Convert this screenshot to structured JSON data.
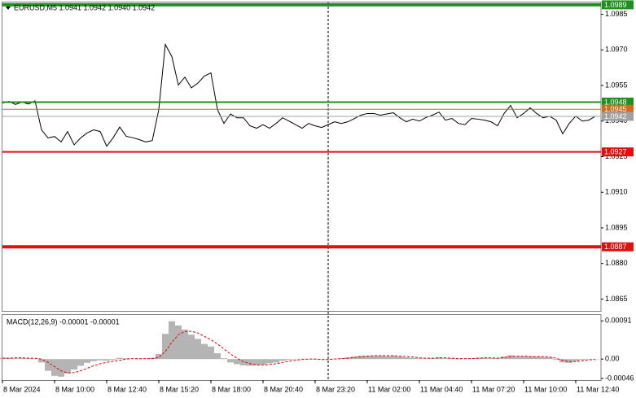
{
  "chart_data": [
    {
      "type": "line",
      "title": "EURUSD,M5  1.0941 1.0942 1.0940 1.0942",
      "color": "#000000",
      "x": [
        0,
        4,
        8,
        12,
        16,
        20,
        24,
        28,
        32,
        36,
        40,
        44,
        48,
        52,
        56,
        60,
        64,
        68,
        72,
        76,
        80,
        84,
        88,
        92,
        96,
        100,
        104,
        108,
        112,
        116,
        120,
        124,
        128,
        132,
        136,
        140,
        144,
        148,
        152,
        156,
        160,
        164,
        168,
        172,
        176,
        180,
        184,
        188,
        192,
        196,
        200,
        204,
        208,
        212,
        216,
        220,
        224,
        228,
        232,
        236,
        240,
        244,
        248,
        252,
        256,
        260,
        264,
        268,
        272,
        276,
        280,
        284,
        288,
        292,
        296,
        300,
        304,
        308,
        312,
        316,
        320,
        324,
        328,
        332,
        336,
        340,
        344,
        348,
        352,
        356,
        360,
        364
      ],
      "values": [
        1.09476,
        1.09483,
        1.0947,
        1.0948,
        1.09472,
        1.09485,
        1.09363,
        1.09329,
        1.09335,
        1.09312,
        1.09356,
        1.093,
        1.09329,
        1.0935,
        1.09363,
        1.09356,
        1.09294,
        1.0933,
        1.09375,
        1.09336,
        1.0933,
        1.09322,
        1.09312,
        1.09318,
        1.09449,
        1.09723,
        1.09672,
        1.09552,
        1.09585,
        1.0954,
        1.0956,
        1.0959,
        1.09603,
        1.09449,
        1.0939,
        1.0943,
        1.09414,
        1.09414,
        1.0938,
        1.0937,
        1.09385,
        1.0937,
        1.0939,
        1.09414,
        1.094,
        1.09385,
        1.0937,
        1.0939,
        1.0938,
        1.09373,
        1.09385,
        1.09397,
        1.0939,
        1.09397,
        1.0941,
        1.09425,
        1.09432,
        1.09432,
        1.09425,
        1.0943,
        1.09435,
        1.09414,
        1.09397,
        1.09408,
        1.094,
        1.09415,
        1.09425,
        1.09438,
        1.09404,
        1.09411,
        1.0939,
        1.09385,
        1.09411,
        1.09408,
        1.09404,
        1.09397,
        1.0938,
        1.09432,
        1.09466,
        1.09414,
        1.09432,
        1.09456,
        1.09432,
        1.09414,
        1.0942,
        1.09404,
        1.09346,
        1.0939,
        1.09421,
        1.094,
        1.09404,
        1.0942
      ],
      "xlim": [
        0,
        367.5
      ],
      "ylim": [
        1.086,
        1.099
      ],
      "yticks": [
        1.0985,
        {
          "value": 1.097,
          "label": "1.0970"
        },
        1.0955,
        {
          "value": 1.094,
          "label": "1.0940"
        },
        1.0925,
        {
          "value": 1.091,
          "label": "1.0910"
        },
        1.0895,
        {
          "value": 1.088,
          "label": "1.0880"
        },
        1.0865
      ],
      "levels": [
        {
          "value": 1.0989,
          "color": "#1f8f1f",
          "width": 4
        },
        {
          "value": 1.0948,
          "color": "#1f8f1f",
          "width": 2
        },
        {
          "value": 1.0945,
          "color": "#d2691e",
          "width": 1
        },
        {
          "value": 1.0942,
          "color": "#a0a0a0",
          "width": 1
        },
        {
          "value": 1.0927,
          "color": "#e01010",
          "width": 2
        },
        {
          "value": 1.0887,
          "color": "#e01010",
          "width": 4
        }
      ],
      "vlines": [
        200
      ]
    },
    {
      "type": "macd",
      "title": "MACD(12,26,9) -0.00001 -0.00001",
      "x": [
        0,
        4,
        8,
        12,
        16,
        20,
        24,
        28,
        32,
        36,
        40,
        44,
        48,
        52,
        56,
        60,
        64,
        68,
        72,
        76,
        80,
        84,
        88,
        92,
        96,
        100,
        104,
        108,
        112,
        116,
        120,
        124,
        128,
        132,
        136,
        140,
        144,
        148,
        152,
        156,
        160,
        164,
        168,
        172,
        176,
        180,
        184,
        188,
        192,
        196,
        200,
        204,
        208,
        212,
        216,
        220,
        224,
        228,
        232,
        236,
        240,
        244,
        248,
        252,
        256,
        260,
        264,
        268,
        272,
        276,
        280,
        284,
        288,
        292,
        296,
        300,
        304,
        308,
        312,
        316,
        320,
        324,
        328,
        332,
        336,
        340,
        344,
        348,
        352,
        356,
        360,
        364
      ],
      "histogram": {
        "color": "#b4b4b4",
        "values": [
          3e-05,
          3e-05,
          2e-05,
          3e-05,
          2e-05,
          1e-05,
          -8e-05,
          -0.00028,
          -0.0004,
          -0.00042,
          -0.00034,
          -0.00025,
          -0.00016,
          -9e-05,
          -5e-05,
          -3e-05,
          -4e-05,
          -2e-05,
          3e-05,
          2e-05,
          1e-05,
          0,
          1e-05,
          3e-05,
          0.00012,
          0.0006,
          0.0009,
          0.0008,
          0.0007,
          0.00058,
          0.00048,
          0.00036,
          0.0003,
          0.00014,
          2e-05,
          -8e-05,
          -0.00012,
          -0.00015,
          -0.00016,
          -0.00015,
          -0.00013,
          -0.0001,
          -8e-05,
          -4e-05,
          -2e-05,
          0,
          1e-05,
          0,
          -1e-05,
          -1e-05,
          0,
          1e-05,
          2e-05,
          4e-05,
          6e-05,
          8e-05,
          8e-05,
          8e-05,
          8e-05,
          7e-05,
          8e-05,
          6e-05,
          4e-05,
          3e-05,
          2e-05,
          1e-05,
          2e-05,
          4e-05,
          2e-05,
          2e-05,
          0,
          1e-05,
          2e-05,
          3e-05,
          3e-05,
          2e-05,
          2e-05,
          6e-05,
          9e-05,
          6e-05,
          6e-05,
          7e-05,
          6e-05,
          5e-05,
          4e-05,
          -2e-05,
          -8e-05,
          -9e-05,
          -5e-05,
          -2e-05,
          0,
          0
        ]
      },
      "signal": {
        "color": "#e00000",
        "values": [
          2e-05,
          2e-05,
          3e-05,
          3e-05,
          2e-05,
          2e-05,
          0,
          -8e-05,
          -0.00018,
          -0.00028,
          -0.00033,
          -0.00032,
          -0.00028,
          -0.00022,
          -0.00016,
          -0.00011,
          -8e-05,
          -5e-05,
          -3e-05,
          0,
          1e-05,
          1e-05,
          1e-05,
          1e-05,
          4e-05,
          0.00018,
          0.0004,
          0.00058,
          0.00066,
          0.00066,
          0.00062,
          0.00054,
          0.00046,
          0.00036,
          0.00024,
          0.00012,
          2e-05,
          -6e-05,
          -0.00011,
          -0.00014,
          -0.00014,
          -0.00013,
          -0.00011,
          -8e-05,
          -5e-05,
          -3e-05,
          -1e-05,
          0,
          0,
          -1e-05,
          -1e-05,
          0,
          1e-05,
          2e-05,
          4e-05,
          5e-05,
          7e-05,
          8e-05,
          8e-05,
          8e-05,
          8e-05,
          7e-05,
          6e-05,
          5e-05,
          3e-05,
          2e-05,
          2e-05,
          3e-05,
          3e-05,
          2e-05,
          1e-05,
          1e-05,
          1e-05,
          2e-05,
          3e-05,
          3e-05,
          2e-05,
          4e-05,
          6e-05,
          7e-05,
          7e-05,
          6e-05,
          6e-05,
          6e-05,
          5e-05,
          2e-05,
          -3e-05,
          -6e-05,
          -6e-05,
          -4e-05,
          -2e-05,
          -1e-05
        ]
      },
      "xlim": [
        0,
        367.5
      ],
      "ylim": [
        -0.0005,
        0.00103
      ],
      "yticks": [
        0.00091,
        {
          "value": 0,
          "label": "0.00"
        },
        -0.00046
      ],
      "xticks": [
        {
          "value": 0,
          "label": "8 Mar 2024"
        },
        {
          "value": 32,
          "label": "8 Mar 10:00"
        },
        {
          "value": 64,
          "label": "8 Mar 12:40"
        },
        {
          "value": 96,
          "label": "8 Mar 15:20"
        },
        {
          "value": 128,
          "label": "8 Mar 18:00"
        },
        {
          "value": 160,
          "label": "8 Mar 20:40"
        },
        {
          "value": 192,
          "label": "8 Mar 23:20"
        },
        {
          "value": 224,
          "label": "11 Mar 02:00"
        },
        {
          "value": 256,
          "label": "11 Mar 04:40"
        },
        {
          "value": 288,
          "label": "11 Mar 07:20"
        },
        {
          "value": 320,
          "label": "11 Mar 10:00"
        },
        {
          "value": 352,
          "label": "11 Mar 12:40"
        }
      ]
    }
  ]
}
